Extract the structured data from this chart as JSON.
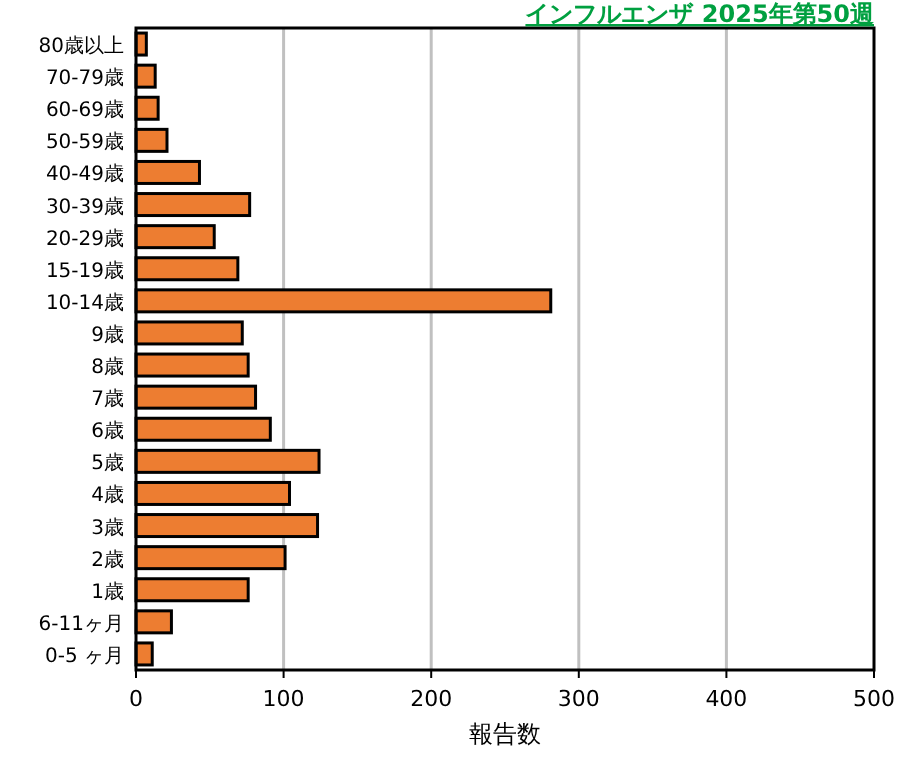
{
  "chart_data": {
    "type": "bar",
    "orientation": "horizontal",
    "title": "インフルエンザ 2025年第50週",
    "xlabel": "報告数",
    "categories": [
      "80歳以上",
      "70-79歳",
      "60-69歳",
      "50-59歳",
      "40-49歳",
      "30-39歳",
      "20-29歳",
      "15-19歳",
      "10-14歳",
      "9歳",
      "8歳",
      "7歳",
      "6歳",
      "5歳",
      "4歳",
      "3歳",
      "2歳",
      "1歳",
      "6-11ヶ月",
      "0-5 ヶ月"
    ],
    "values": [
      7,
      13,
      15,
      21,
      43,
      77,
      53,
      69,
      281,
      72,
      76,
      81,
      91,
      124,
      104,
      123,
      101,
      76,
      24,
      11
    ],
    "color": "#ed7d31",
    "xlim": [
      0,
      500
    ],
    "xticks": [
      0,
      100,
      200,
      300,
      400,
      500
    ],
    "grid": "x"
  }
}
